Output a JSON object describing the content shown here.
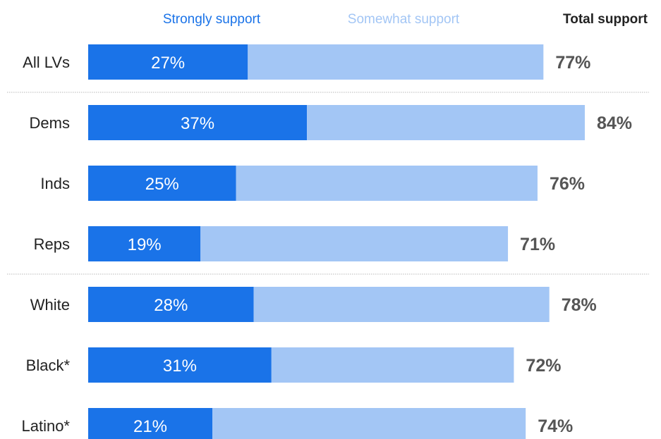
{
  "chart_data": {
    "type": "bar",
    "orientation": "horizontal",
    "stacked": true,
    "categories": [
      "All LVs",
      "Dems",
      "Inds",
      "Reps",
      "White",
      "Black*",
      "Latino*"
    ],
    "series": [
      {
        "name": "Strongly support",
        "values": [
          27,
          37,
          25,
          19,
          28,
          31,
          21
        ],
        "labels": [
          "27%",
          "37%",
          "25%",
          "19%",
          "28%",
          "31%",
          "21%"
        ]
      },
      {
        "name": "Somewhat support",
        "values": [
          50,
          47,
          51,
          52,
          50,
          41,
          53
        ]
      }
    ],
    "totals": {
      "name": "Total support",
      "values": [
        77,
        84,
        76,
        71,
        78,
        72,
        74
      ],
      "labels": [
        "77%",
        "84%",
        "76%",
        "71%",
        "78%",
        "72%",
        "74%"
      ]
    },
    "xlim": [
      0,
      84
    ],
    "grid": false,
    "legend_position": "top",
    "colors": {
      "strongly": "#1a73e8",
      "somewhat": "#a3c6f5",
      "total_header": "#222222",
      "total_values": "#555555",
      "separator": "#b8b8b8"
    },
    "separators_after": [
      "All LVs",
      "Reps"
    ]
  }
}
